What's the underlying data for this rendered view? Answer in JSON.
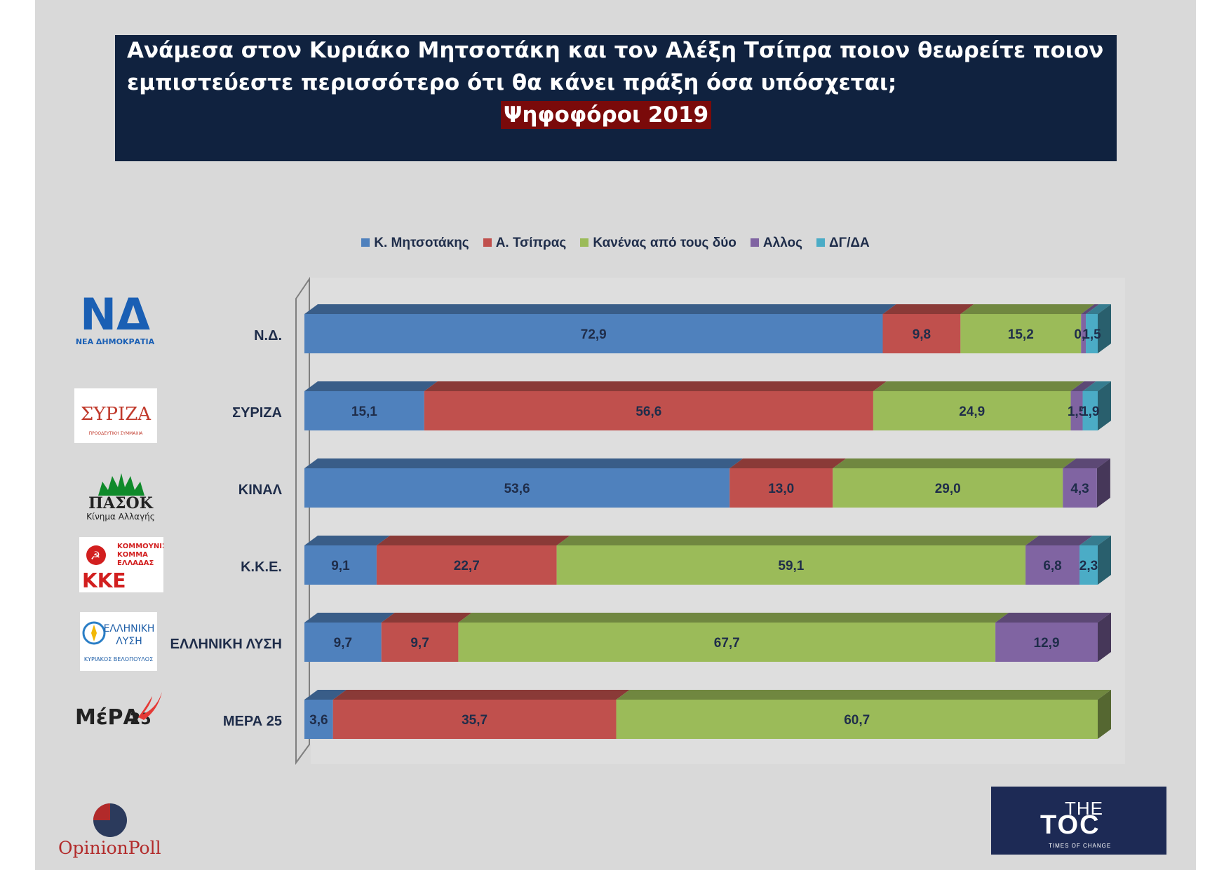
{
  "title": {
    "line1": "Ανάμεσα στον Κυριάκο Μητσοτάκη και τον Αλέξη Τσίπρα ποιον θεωρείτε ποιον",
    "line2": "εμπιστεύεστε περισσότερο ότι θα κάνει πράξη όσα υπόσχεται;",
    "subtitle": "Ψηφοφόροι 2019"
  },
  "colors": {
    "series": [
      "#4f81bd",
      "#c0504d",
      "#9bbb59",
      "#8064a2",
      "#4bacc6"
    ],
    "title_bg": "#10223f",
    "subtitle_bg": "#7a0a0a"
  },
  "chart_data": {
    "type": "bar",
    "orientation": "horizontal",
    "stacked": true,
    "style": "3d",
    "categories": [
      "Ν.Δ.",
      "ΣΥΡΙΖΑ",
      "ΚΙΝΑΛ",
      "Κ.Κ.Ε.",
      "ΕΛΛΗΝΙΚΗ ΛΥΣΗ",
      "ΜΕΡΑ 25"
    ],
    "series": [
      {
        "name": "Κ. Μητσοτάκης",
        "values": [
          72.9,
          15.1,
          53.6,
          9.1,
          9.7,
          3.6
        ],
        "labels": [
          "72,9",
          "15,1",
          "53,6",
          "9,1",
          "9,7",
          "3,6"
        ]
      },
      {
        "name": "Α. Τσίπρας",
        "values": [
          9.8,
          56.6,
          13.0,
          22.7,
          9.7,
          35.7
        ],
        "labels": [
          "9,8",
          "56,6",
          "13,0",
          "22,7",
          "9,7",
          "35,7"
        ]
      },
      {
        "name": "Κανένας από τους δύο",
        "values": [
          15.2,
          24.9,
          29.0,
          59.1,
          67.7,
          60.7
        ],
        "labels": [
          "15,2",
          "24,9",
          "29,0",
          "59,1",
          "67,7",
          "60,7"
        ]
      },
      {
        "name": "Αλλος",
        "values": [
          0.6,
          1.5,
          4.3,
          6.8,
          12.9,
          0
        ],
        "labels": [
          "0,6",
          "1,5",
          "4,3",
          "6,8",
          "12,9",
          ""
        ]
      },
      {
        "name": "ΔΓ/ΔΑ",
        "values": [
          1.5,
          1.9,
          0,
          2.3,
          0,
          0
        ],
        "labels": [
          "1,5",
          "1,9",
          "",
          "2,3",
          "",
          ""
        ]
      }
    ],
    "xlim": [
      0,
      100
    ],
    "legend_position": "top",
    "grid": false
  },
  "logos": {
    "nd": {
      "mark": "ΝΔ",
      "text": "ΝΕΑ ΔΗΜΟΚΡΑΤΙΑ"
    },
    "syriza": {
      "mark": "ΣΥΡΙΖΑ",
      "text": "ΠΡΟΟΔΕΥΤΙΚΗ ΣΥΜΜΑΧΙΑ"
    },
    "pasok": {
      "mark": "ΠΑΣΟΚ",
      "text": "Κίνημα Αλλαγής"
    },
    "kke": {
      "mark": "ΚΚΕ",
      "text1": "ΚΟΜΜΟΥΝΙΣΤΙΚΟ",
      "text2": "ΚΟΜΜΑ",
      "text3": "ΕΛΛΑΔΑΣ"
    },
    "elliniki_lysi": {
      "text1": "ΕΛΛΗΝΙΚΗ",
      "text2": "ΛΥΣΗ",
      "text3": "ΚΥΡΙΑΚΟΣ ΒΕΛΟΠΟΥΛΟΣ"
    },
    "mera25": {
      "mark": "ΜέΡΑ",
      "num": "25"
    }
  },
  "footer": {
    "opinionpoll": "OpinionPoll",
    "toc_the": "THE",
    "toc_toc": "TOC",
    "toc_tag": "TIMES OF CHANGE"
  }
}
